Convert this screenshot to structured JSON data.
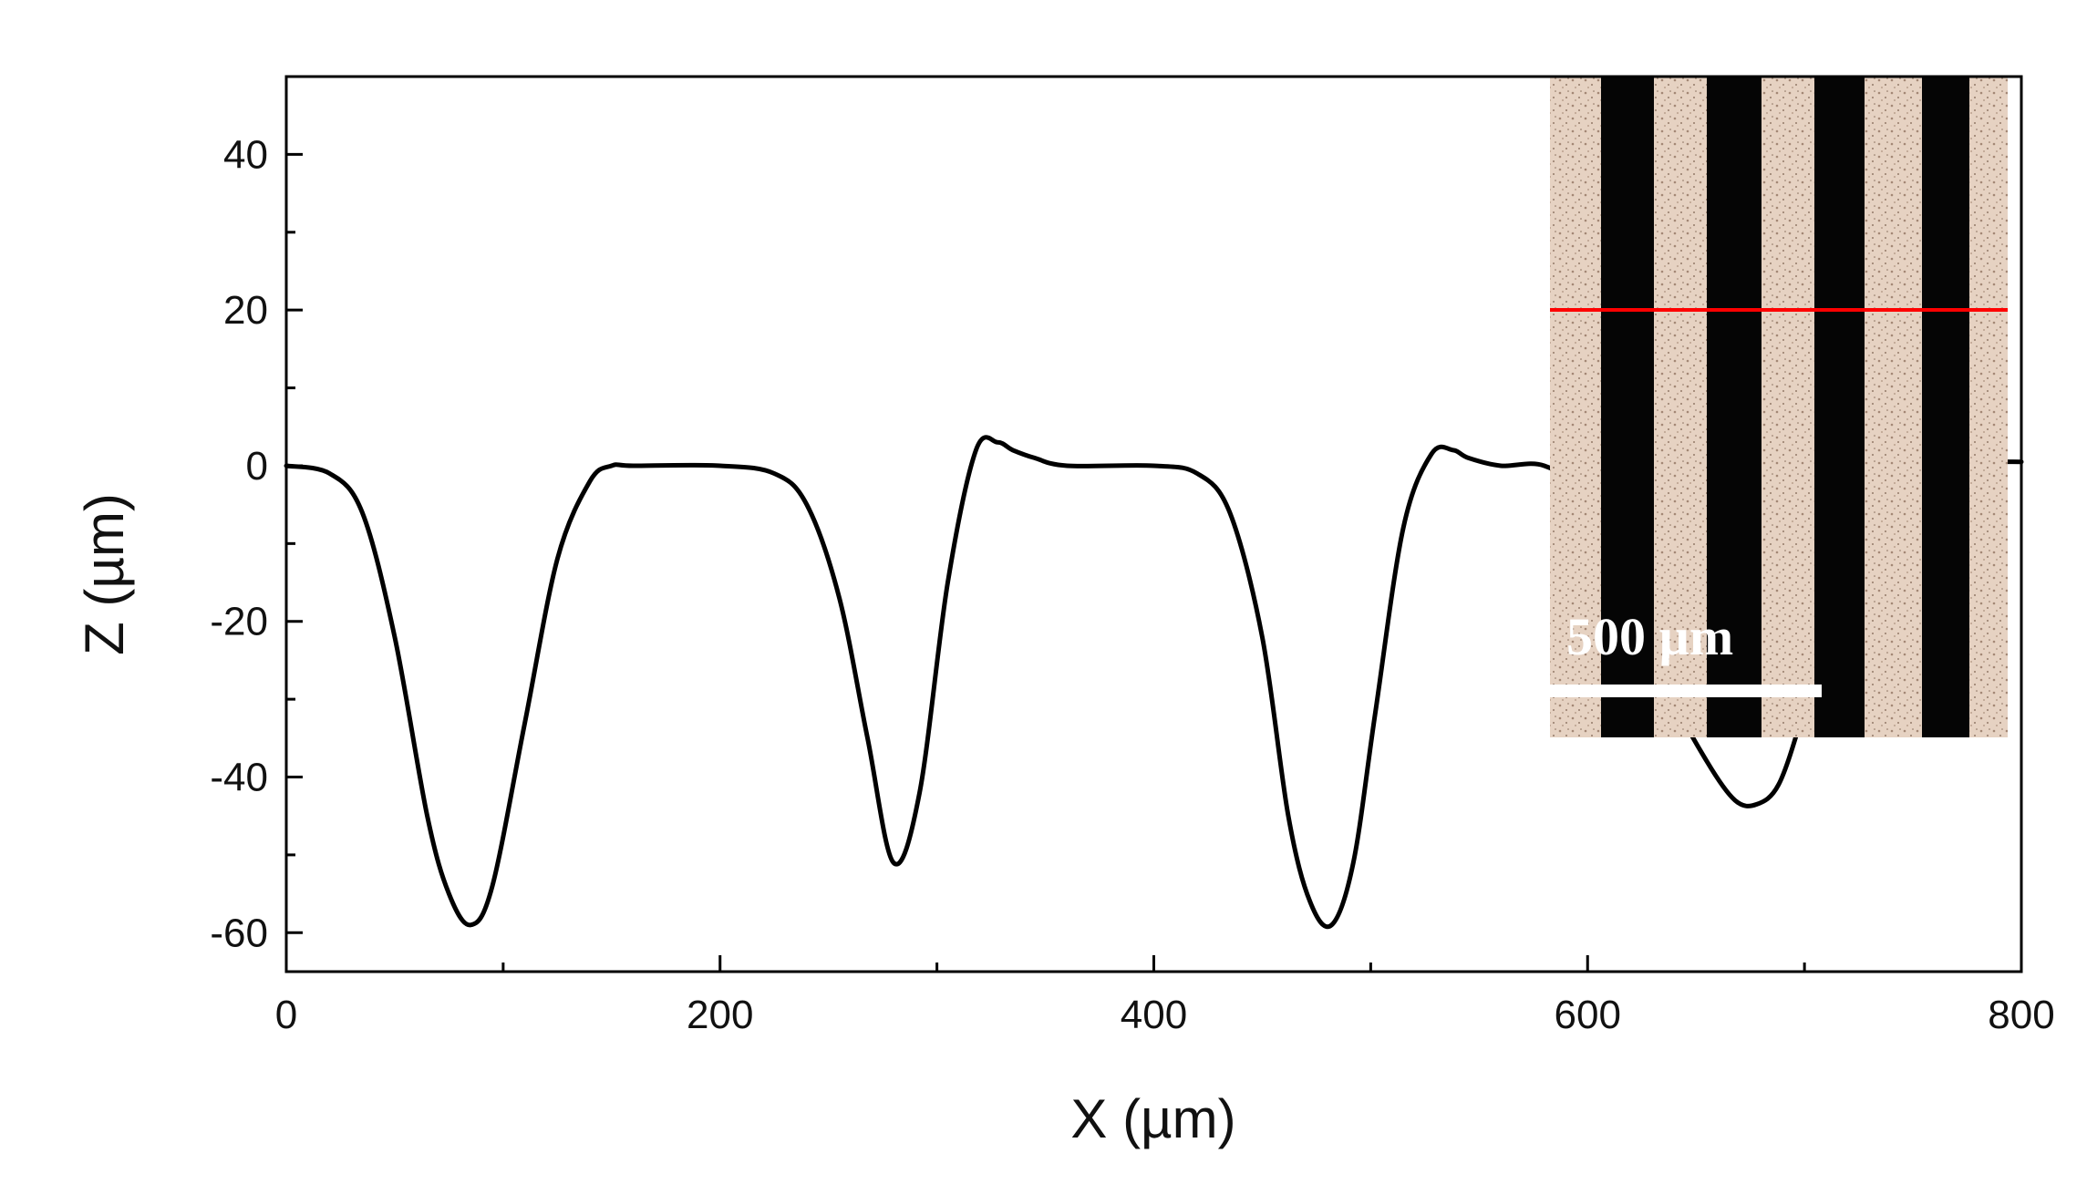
{
  "chart_data": {
    "type": "line",
    "title": "",
    "xlabel": "X (µm)",
    "ylabel": "Z (µm)",
    "xlim": [
      0,
      800
    ],
    "ylim": [
      -65,
      50
    ],
    "x_ticks": [
      0,
      200,
      400,
      600,
      800
    ],
    "y_ticks": [
      40,
      20,
      0,
      -20,
      -40,
      -60
    ],
    "grid": false,
    "legend": "none",
    "series": [
      {
        "color": "#000000",
        "x": [
          0,
          20,
          35,
          50,
          65,
          75,
          85,
          95,
          110,
          125,
          140,
          150,
          160,
          200,
          225,
          240,
          255,
          268,
          280,
          292,
          305,
          318,
          328,
          335,
          345,
          360,
          400,
          420,
          435,
          450,
          462,
          472,
          482,
          492,
          502,
          515,
          528,
          538,
          545,
          560,
          580,
          600,
          620,
          640,
          655,
          668,
          678,
          688,
          698,
          705,
          720,
          740,
          760,
          780,
          800
        ],
        "y": [
          0,
          -1,
          -6,
          -22,
          -45,
          -55,
          -59,
          -54,
          -33,
          -12,
          -2,
          0,
          0,
          0,
          -1,
          -5,
          -17,
          -35,
          -51,
          -42,
          -15,
          2,
          3,
          2,
          1,
          0,
          0,
          -1,
          -6,
          -22,
          -45,
          -56,
          -59,
          -51,
          -32,
          -8,
          1.5,
          2,
          1,
          0,
          0,
          -4,
          -15,
          -30,
          -38,
          -43,
          -43.5,
          -41,
          -33,
          -25,
          -10,
          -2,
          0.3,
          0.5,
          0.5
        ]
      }
    ]
  },
  "inset": {
    "scale_bar_label": "500 µm",
    "image_colors": {
      "groove": "#050505",
      "surface": "#e6d2c2",
      "surface_speckle": "#b49682",
      "section_line": "#ff0000",
      "scale_bar": "#ffffff"
    }
  },
  "colors": {
    "axis": "#000000",
    "line": "#000000",
    "background": "#ffffff"
  }
}
